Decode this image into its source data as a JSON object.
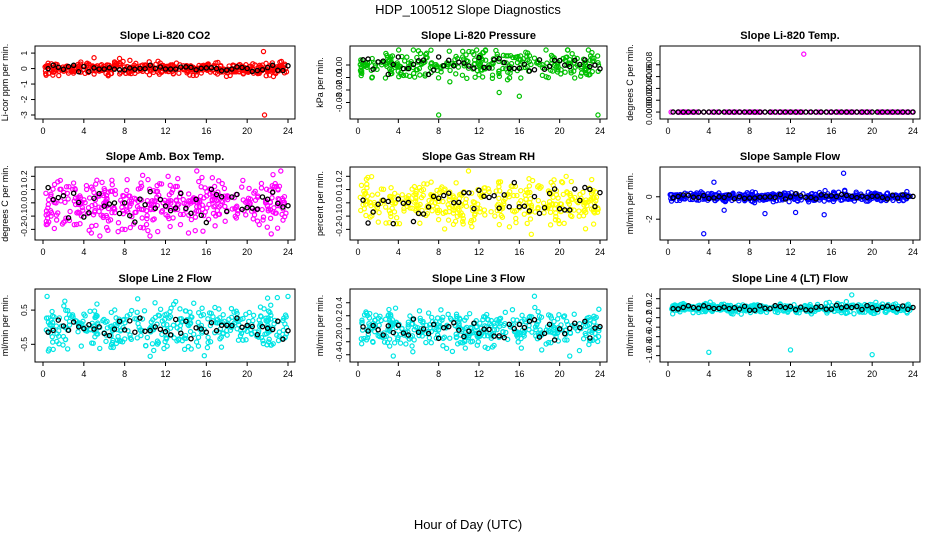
{
  "figure": {
    "title": "HDP_100512  Slope Diagnostics",
    "xlabel": "Hour of Day (UTC)"
  },
  "chart_data": [
    {
      "type": "scatter",
      "title": "Slope Li-820 CO2",
      "ylabel": "Li-cor ppm per min.",
      "color": "#ff0000",
      "xlim": [
        0,
        24
      ],
      "ylim": [
        -3,
        1.2
      ],
      "yticks": [
        -3,
        -2,
        -1,
        0,
        1
      ],
      "ytick_labels": [
        "-3",
        "-2",
        "-1",
        "0",
        "1"
      ],
      "xticks": [
        0,
        4,
        8,
        12,
        16,
        20,
        24
      ],
      "xtick_labels": [
        "0",
        "4",
        "8",
        "12",
        "16",
        "20",
        "24"
      ],
      "spread": 0.2,
      "hourly_spread": 0.1,
      "n": 420,
      "outliers": [
        [
          21.6,
          1.1
        ],
        [
          21.7,
          -3.0
        ],
        [
          5.0,
          0.7
        ],
        [
          7.5,
          0.65
        ]
      ]
    },
    {
      "type": "scatter",
      "title": "Slope Li-820 Pressure",
      "ylabel": "kPa per min.",
      "color": "#00c000",
      "xlim": [
        0,
        24
      ],
      "ylim": [
        -0.04,
        0.012
      ],
      "yticks": [
        -0.03,
        -0.02,
        -0.01,
        0.0
      ],
      "ytick_labels": [
        "-0.03",
        "-0.02",
        "-0.01",
        "0.00"
      ],
      "xticks": [
        0,
        4,
        8,
        12,
        16,
        20,
        24
      ],
      "xtick_labels": [
        "0",
        "4",
        "8",
        "12",
        "16",
        "20",
        "24"
      ],
      "spread": 0.006,
      "hourly_spread": 0.003,
      "n": 320,
      "outliers": [
        [
          8.0,
          -0.04
        ],
        [
          23.8,
          -0.04
        ],
        [
          16.0,
          -0.025
        ],
        [
          14.0,
          -0.022
        ]
      ]
    },
    {
      "type": "scatter",
      "title": "Slope Li-820 Temp.",
      "ylabel": "degrees C per min.",
      "color": "#ff00ff",
      "xlim": [
        0,
        24
      ],
      "ylim": [
        -5e-05,
        0.00105
      ],
      "yticks": [
        0,
        0.0002,
        0.0004,
        0.0006,
        0.0008
      ],
      "ytick_labels": [
        "0.0000",
        "0.0002",
        "0.0004",
        "0.0006",
        "0.0008"
      ],
      "xticks": [
        0,
        4,
        8,
        12,
        16,
        20,
        24
      ],
      "xtick_labels": [
        "0",
        "4",
        "8",
        "12",
        "16",
        "20",
        "24"
      ],
      "spread": 0,
      "hourly_spread": 0,
      "n": 140,
      "outliers": [
        [
          13.3,
          0.00098
        ]
      ]
    },
    {
      "type": "scatter",
      "title": "Slope Amb. Box Temp.",
      "ylabel": "degrees C per min.",
      "color": "#ff00ff",
      "xlim": [
        0,
        24
      ],
      "ylim": [
        -0.25,
        0.24
      ],
      "yticks": [
        -0.2,
        -0.1,
        0.0,
        0.1,
        0.2
      ],
      "ytick_labels": [
        "-0.2",
        "-0.1",
        "0.0",
        "0.1",
        "0.2"
      ],
      "xticks": [
        0,
        4,
        8,
        12,
        16,
        20,
        24
      ],
      "xtick_labels": [
        "0",
        "4",
        "8",
        "12",
        "16",
        "20",
        "24"
      ],
      "spread": 0.1,
      "hourly_spread": 0.06,
      "n": 420,
      "outliers": []
    },
    {
      "type": "scatter",
      "title": "Slope Gas Stream RH",
      "ylabel": "percent per min.",
      "color": "#ffff00",
      "xlim": [
        0,
        24
      ],
      "ylim": [
        -0.25,
        0.24
      ],
      "yticks": [
        -0.2,
        -0.1,
        0.0,
        0.1,
        0.2
      ],
      "ytick_labels": [
        "-0.2",
        "-0.1",
        "0.0",
        "0.1",
        "0.2"
      ],
      "xticks": [
        0,
        4,
        8,
        12,
        16,
        20,
        24
      ],
      "xtick_labels": [
        "0",
        "4",
        "8",
        "12",
        "16",
        "20",
        "24"
      ],
      "spread": 0.09,
      "hourly_spread": 0.08,
      "n": 380,
      "outliers": []
    },
    {
      "type": "scatter",
      "title": "Slope Sample Flow",
      "ylabel": "ml/min per min.",
      "color": "#0000ff",
      "xlim": [
        0,
        24
      ],
      "ylim": [
        -3.5,
        2.3
      ],
      "yticks": [
        -2,
        0
      ],
      "ytick_labels": [
        "-2",
        "0"
      ],
      "xticks": [
        0,
        4,
        8,
        12,
        16,
        20,
        24
      ],
      "xtick_labels": [
        "0",
        "4",
        "8",
        "12",
        "16",
        "20",
        "24"
      ],
      "spread": 0.2,
      "hourly_spread": 0.12,
      "n": 420,
      "outliers": [
        [
          3.5,
          -3.3
        ],
        [
          4.5,
          1.3
        ],
        [
          12.5,
          -1.4
        ],
        [
          9.5,
          -1.5
        ],
        [
          17.2,
          2.1
        ],
        [
          5.5,
          -1.2
        ],
        [
          15.3,
          -1.6
        ]
      ]
    },
    {
      "type": "scatter",
      "title": "Slope Line 2 Flow",
      "ylabel": "ml/min per min.",
      "color": "#00e5e5",
      "xlim": [
        0,
        24
      ],
      "ylim": [
        -0.9,
        1.0
      ],
      "yticks": [
        -0.5,
        0.5
      ],
      "ytick_labels": [
        "-0.5",
        "0.5"
      ],
      "xticks": [
        0,
        4,
        8,
        12,
        16,
        20,
        24
      ],
      "xtick_labels": [
        "0",
        "4",
        "8",
        "12",
        "16",
        "20",
        "24"
      ],
      "spread": 0.3,
      "hourly_spread": 0.15,
      "n": 380,
      "outliers": [
        [
          0.4,
          0.9
        ],
        [
          10.5,
          -0.85
        ],
        [
          13.0,
          0.75
        ],
        [
          22.0,
          0.85
        ],
        [
          24.0,
          0.9
        ]
      ]
    },
    {
      "type": "scatter",
      "title": "Slope Line 3 Flow",
      "ylabel": "ml/min per min.",
      "color": "#00e5e5",
      "xlim": [
        0,
        24
      ],
      "ylim": [
        -0.45,
        0.55
      ],
      "yticks": [
        -0.4,
        -0.2,
        0.0,
        0.2,
        0.4
      ],
      "ytick_labels": [
        "-0.4",
        "-0.2",
        "0.0",
        "0.2",
        "0.4"
      ],
      "xticks": [
        0,
        4,
        8,
        12,
        16,
        20,
        24
      ],
      "xtick_labels": [
        "0",
        "4",
        "8",
        "12",
        "16",
        "20",
        "24"
      ],
      "spread": 0.14,
      "hourly_spread": 0.09,
      "n": 400,
      "outliers": [
        [
          17.5,
          0.5
        ],
        [
          3.5,
          -0.42
        ],
        [
          21.0,
          -0.42
        ]
      ]
    },
    {
      "type": "scatter",
      "title": "Slope Line 4 (LT) Flow",
      "ylabel": "ml/min per min.",
      "color": "#00e5e5",
      "xlim": [
        0,
        24
      ],
      "ylim": [
        -1.05,
        0.32
      ],
      "yticks": [
        -1.0,
        -0.8,
        -0.6,
        -0.4,
        -0.2,
        0.0,
        0.2
      ],
      "ytick_labels": [
        "-1.0",
        "-0.8",
        "-0.6",
        "-0.4",
        "-0.2",
        "0.0",
        "0.2"
      ],
      "xticks": [
        0,
        4,
        8,
        12,
        16,
        20,
        24
      ],
      "xtick_labels": [
        "0",
        "4",
        "8",
        "12",
        "16",
        "20",
        "24"
      ],
      "spread": 0.05,
      "hourly_spread": 0.03,
      "n": 420,
      "outliers": [
        [
          4.0,
          -0.93
        ],
        [
          12.0,
          -0.88
        ],
        [
          20.0,
          -0.98
        ],
        [
          18.0,
          0.28
        ]
      ]
    }
  ]
}
